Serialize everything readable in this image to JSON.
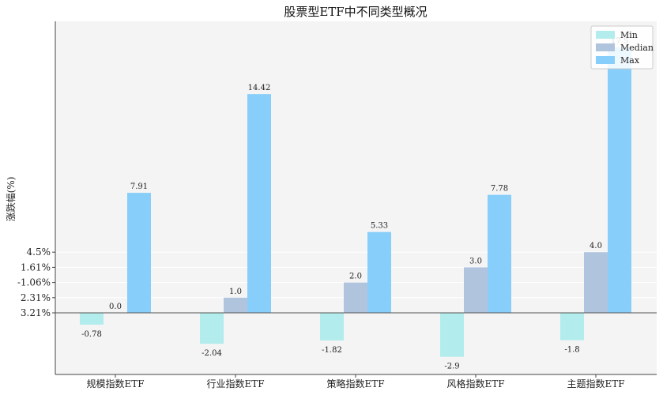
{
  "chart_data": {
    "type": "bar",
    "title": "股票型ETF中不同类型概况",
    "xlabel": "",
    "ylabel": "涨跌幅(%)",
    "categories": [
      "规模指数ETF",
      "行业指数ETF",
      "策略指数ETF",
      "风格指数ETF",
      "主题指数ETF"
    ],
    "series": [
      {
        "name": "Min",
        "color": "#b2ecec",
        "values": [
          -0.78,
          -2.04,
          -1.82,
          -2.9,
          -1.8
        ],
        "labels": [
          "-0.78",
          "-2.04",
          "-1.82",
          "-2.9",
          "-1.8"
        ]
      },
      {
        "name": "Median",
        "color": "#b0c4de",
        "values": [
          0.0,
          1.0,
          2.0,
          3.0,
          4.0
        ],
        "labels": [
          "0.0",
          "1.0",
          "2.0",
          "3.0",
          "4.0"
        ]
      },
      {
        "name": "Max",
        "color": "#87cefa",
        "values": [
          7.91,
          14.42,
          5.33,
          7.78,
          17.5
        ],
        "labels": [
          "7.91",
          "14.42",
          "5.33",
          "7.78",
          "17.5"
        ]
      }
    ],
    "ylim": [
      -4.0,
      19.0
    ],
    "yticks": [
      {
        "value": 0.0,
        "label": "3.21%"
      },
      {
        "value": 1.0,
        "label": "2.31%"
      },
      {
        "value": 2.0,
        "label": "-1.06%"
      },
      {
        "value": 3.0,
        "label": "1.61%"
      },
      {
        "value": 4.0,
        "label": "4.5%"
      }
    ],
    "legend": "top-right",
    "grid": true,
    "background": "#f4f4f4"
  }
}
